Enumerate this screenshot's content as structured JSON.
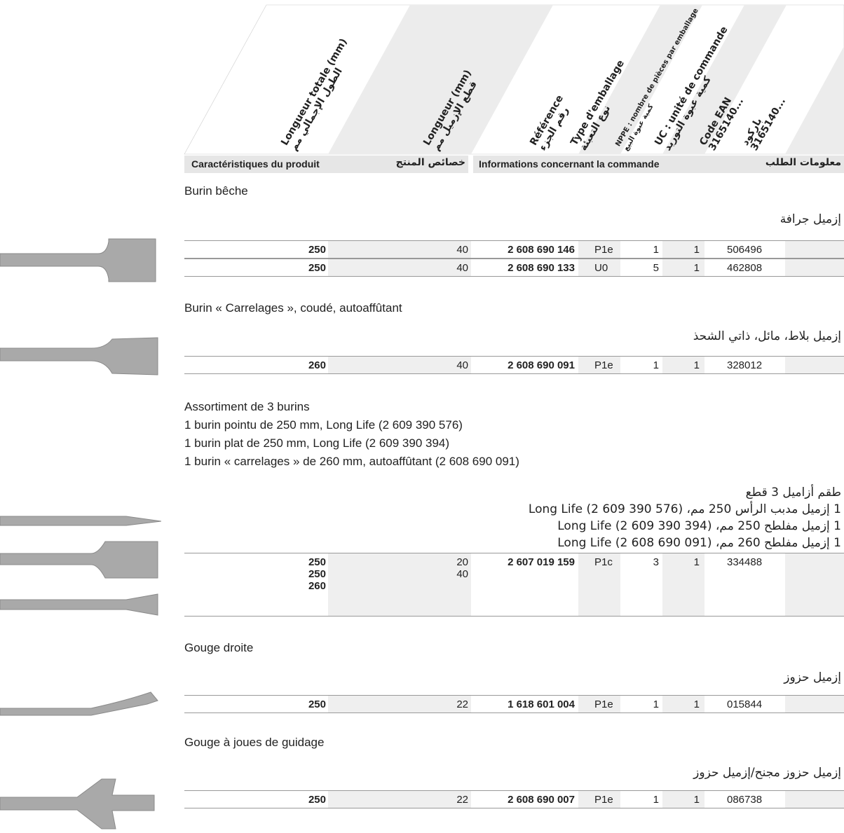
{
  "header": {
    "columns": [
      [
        "Longueur totale (mm)",
        "الطول الإجمالي مم"
      ],
      [
        "Longueur (mm)",
        "قطع الإزميل مم"
      ],
      [
        "Référence",
        "رقم الجزء"
      ],
      [
        "Type d'emballage",
        "نوع التعبئة"
      ],
      [
        "NPPE : nombre de pièces par emballage",
        "كمية عبوة البيع"
      ],
      [
        "UC : unité de commande",
        "كمية عبوة التوريد"
      ],
      [
        "Code EAN",
        "3165140..."
      ],
      [
        "باركود",
        "3165140..."
      ]
    ],
    "section_product_fr": "Caractéristiques du produit",
    "section_product_ar": "خصائص المنتج",
    "section_order_fr": "Informations concernant la commande",
    "section_order_ar": "معلومات الطلب"
  },
  "groups": [
    {
      "fr": [
        "Burin bêche"
      ],
      "ar": [
        "إزميل جرافة"
      ],
      "rows": [
        {
          "length": [
            250
          ],
          "cut": [
            40
          ],
          "reference": "2 608 690 146",
          "packaging": "P1e",
          "nppe": 1,
          "uc": 1,
          "ean": "506496"
        },
        {
          "length": [
            250
          ],
          "cut": [
            40
          ],
          "reference": "2 608 690 133",
          "packaging": "U0",
          "nppe": 5,
          "uc": 1,
          "ean": "462808"
        }
      ]
    },
    {
      "fr": [
        "Burin « Carrelages », coudé, autoaffûtant"
      ],
      "ar": [
        "إزميل بلاط، مائل، ذاتي الشحذ"
      ],
      "rows": [
        {
          "length": [
            260
          ],
          "cut": [
            40
          ],
          "reference": "2 608 690 091",
          "packaging": "P1e",
          "nppe": 1,
          "uc": 1,
          "ean": "328012"
        }
      ]
    },
    {
      "fr": [
        "Assortiment de 3 burins",
        "1 burin pointu de 250 mm, Long Life (2 609 390 576)",
        "1 burin plat de 250 mm, Long Life (2 609 390 394)",
        "1 burin « carrelages » de 260 mm, autoaffûtant (2 608 690 091)"
      ],
      "ar": [
        "طقم أزاميل 3 قطع",
        "1 إزميل مدبب الرأس 250 مم، Long Life (2 609 390 576)",
        "1 إزميل مفلطح 250 مم، Long Life (2 609 390 394)",
        "1 إزميل مفلطح 260 مم، Long Life (2 608 690 091)"
      ],
      "rows": [
        {
          "length": [
            250,
            250,
            260
          ],
          "cut": [
            20,
            40
          ],
          "reference": "2 607 019 159",
          "packaging": "P1c",
          "nppe": 3,
          "uc": 1,
          "ean": "334488"
        }
      ]
    },
    {
      "fr": [
        "Gouge droite"
      ],
      "ar": [
        "إزميل حزوز"
      ],
      "rows": [
        {
          "length": [
            250
          ],
          "cut": [
            22
          ],
          "reference": "1 618 601 004",
          "packaging": "P1e",
          "nppe": 1,
          "uc": 1,
          "ean": "015844"
        }
      ]
    },
    {
      "fr": [
        "Gouge à joues de guidage"
      ],
      "ar": [
        "إزميل حزوز مجنح/إزميل حزوز"
      ],
      "rows": [
        {
          "length": [
            250
          ],
          "cut": [
            22
          ],
          "reference": "2 608 690 007",
          "packaging": "P1e",
          "nppe": 1,
          "uc": 1,
          "ean": "086738"
        }
      ]
    }
  ]
}
